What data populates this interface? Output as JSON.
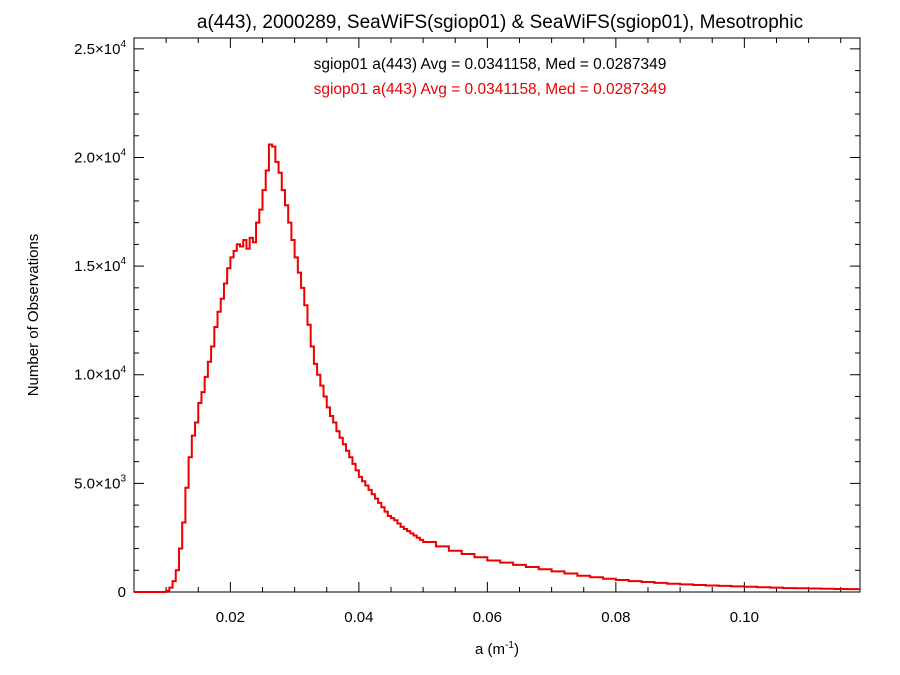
{
  "chart_data": {
    "type": "line",
    "title": "a(443), 2000289, SeaWiFS(sgiop01) & SeaWiFS(sgiop01), Mesotrophic",
    "xlabel_base": "a (m",
    "xlabel_exp": "-1",
    "xlabel_end": ")",
    "ylabel": "Number of Observations",
    "xlim": [
      0.005,
      0.118
    ],
    "ylim": [
      0,
      25500
    ],
    "grid": false,
    "x_ticks": [
      {
        "value": 0.02,
        "label": "0.02"
      },
      {
        "value": 0.04,
        "label": "0.04"
      },
      {
        "value": 0.06,
        "label": "0.06"
      },
      {
        "value": 0.08,
        "label": "0.08"
      },
      {
        "value": 0.1,
        "label": "0.10"
      }
    ],
    "y_ticks": [
      {
        "value": 0,
        "mant": "0",
        "exp": ""
      },
      {
        "value": 5000,
        "mant": "5.0×10",
        "exp": "3"
      },
      {
        "value": 10000,
        "mant": "1.0×10",
        "exp": "4"
      },
      {
        "value": 15000,
        "mant": "1.5×10",
        "exp": "4"
      },
      {
        "value": 20000,
        "mant": "2.0×10",
        "exp": "4"
      },
      {
        "value": 25000,
        "mant": "2.5×10",
        "exp": "4"
      }
    ],
    "legend": [
      {
        "text": "sgiop01 a(443) Avg = 0.0341158, Med = 0.0287349",
        "color": "#000000"
      },
      {
        "text": "sgiop01 a(443) Avg = 0.0341158, Med = 0.0287349",
        "color": "#ee0000"
      }
    ],
    "series": [
      {
        "color": "#ee0000",
        "bin_width": 0.0005,
        "x": [
          0.005,
          0.008,
          0.009,
          0.0095,
          0.01,
          0.0105,
          0.011,
          0.0115,
          0.012,
          0.0125,
          0.013,
          0.0135,
          0.014,
          0.0145,
          0.015,
          0.0155,
          0.016,
          0.0165,
          0.017,
          0.0175,
          0.018,
          0.0185,
          0.019,
          0.0195,
          0.02,
          0.0205,
          0.021,
          0.0215,
          0.022,
          0.0225,
          0.023,
          0.0235,
          0.024,
          0.0245,
          0.025,
          0.0255,
          0.026,
          0.0265,
          0.027,
          0.0275,
          0.028,
          0.0285,
          0.029,
          0.0295,
          0.03,
          0.0305,
          0.031,
          0.0315,
          0.032,
          0.0325,
          0.033,
          0.0335,
          0.034,
          0.0345,
          0.035,
          0.0355,
          0.036,
          0.0365,
          0.037,
          0.0375,
          0.038,
          0.0385,
          0.039,
          0.0395,
          0.04,
          0.0405,
          0.041,
          0.0415,
          0.042,
          0.0425,
          0.043,
          0.0435,
          0.044,
          0.0445,
          0.045,
          0.0455,
          0.046,
          0.0465,
          0.047,
          0.0475,
          0.048,
          0.0485,
          0.049,
          0.0495,
          0.05,
          0.052,
          0.054,
          0.056,
          0.058,
          0.06,
          0.062,
          0.064,
          0.066,
          0.068,
          0.07,
          0.072,
          0.074,
          0.076,
          0.078,
          0.08,
          0.082,
          0.084,
          0.086,
          0.088,
          0.09,
          0.092,
          0.094,
          0.096,
          0.098,
          0.1,
          0.102,
          0.104,
          0.106,
          0.108,
          0.11,
          0.112,
          0.114,
          0.116
        ],
        "y": [
          0,
          0,
          0,
          0,
          50,
          200,
          500,
          1000,
          2000,
          3200,
          4800,
          6200,
          7200,
          7800,
          8700,
          9200,
          9900,
          10600,
          11300,
          12200,
          12900,
          13500,
          14200,
          14900,
          15400,
          15700,
          16000,
          15900,
          16200,
          15800,
          16300,
          16100,
          17000,
          17600,
          18500,
          19400,
          20600,
          20500,
          19800,
          19300,
          18500,
          17800,
          17000,
          16200,
          15400,
          14700,
          14000,
          13200,
          12300,
          11300,
          10500,
          10000,
          9500,
          9000,
          8500,
          8100,
          7800,
          7400,
          7100,
          6800,
          6500,
          6200,
          5900,
          5600,
          5300,
          5100,
          4900,
          4700,
          4500,
          4300,
          4100,
          3900,
          3700,
          3500,
          3400,
          3300,
          3150,
          3000,
          2900,
          2800,
          2700,
          2600,
          2500,
          2400,
          2300,
          2100,
          1900,
          1750,
          1600,
          1450,
          1350,
          1250,
          1150,
          1050,
          950,
          850,
          750,
          680,
          610,
          550,
          500,
          460,
          420,
          380,
          350,
          320,
          300,
          280,
          260,
          240,
          220,
          200,
          180,
          170,
          160,
          150,
          140,
          130
        ]
      }
    ]
  }
}
